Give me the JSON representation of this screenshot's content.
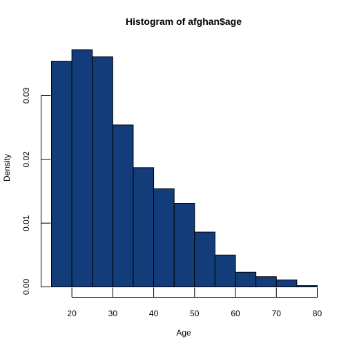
{
  "chart_data": {
    "type": "bar",
    "title": "Histogram of afghan$age",
    "xlabel": "Age",
    "ylabel": "Density",
    "bins": [
      {
        "x0": 15,
        "x1": 20,
        "value": 0.0354
      },
      {
        "x0": 20,
        "x1": 25,
        "value": 0.0372
      },
      {
        "x0": 25,
        "x1": 30,
        "value": 0.0361
      },
      {
        "x0": 30,
        "x1": 35,
        "value": 0.0254
      },
      {
        "x0": 35,
        "x1": 40,
        "value": 0.0187
      },
      {
        "x0": 40,
        "x1": 45,
        "value": 0.0154
      },
      {
        "x0": 45,
        "x1": 50,
        "value": 0.0131
      },
      {
        "x0": 50,
        "x1": 55,
        "value": 0.0086
      },
      {
        "x0": 55,
        "x1": 60,
        "value": 0.005
      },
      {
        "x0": 60,
        "x1": 65,
        "value": 0.0023
      },
      {
        "x0": 65,
        "x1": 70,
        "value": 0.0016
      },
      {
        "x0": 70,
        "x1": 75,
        "value": 0.0011
      },
      {
        "x0": 75,
        "x1": 80,
        "value": 0.0002
      }
    ],
    "xlim": [
      15,
      80
    ],
    "ylim": [
      0,
      0.0372
    ],
    "x_ticks": [
      "20",
      "30",
      "40",
      "50",
      "60",
      "70",
      "80"
    ],
    "y_ticks": [
      "0.00",
      "0.01",
      "0.02",
      "0.03"
    ],
    "bar_color": "#123d7a",
    "grid": false,
    "legend": "none"
  }
}
